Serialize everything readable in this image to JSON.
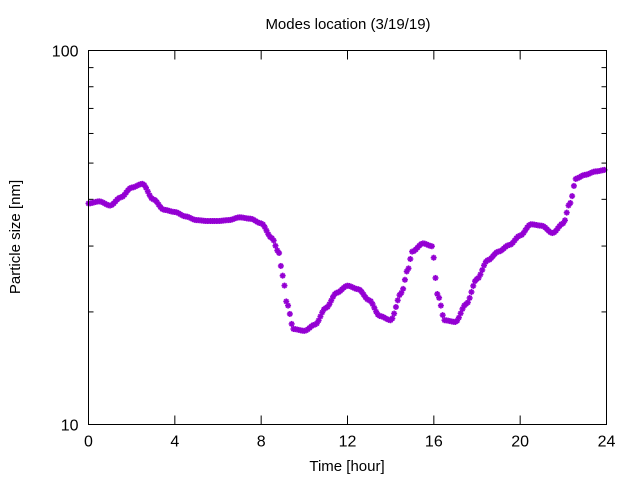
{
  "chart_data": {
    "type": "scatter",
    "title": "Modes location (3/19/19)",
    "xlabel": "Time [hour]",
    "ylabel": "Particle size [nm]",
    "xlim": [
      0,
      24
    ],
    "ylim": [
      10,
      100
    ],
    "yscale": "log",
    "xticks": [
      0,
      4,
      8,
      12,
      16,
      20,
      24
    ],
    "yticks": [
      10,
      100
    ],
    "grid": false,
    "marker_color": "#9400d3",
    "marker": "asterisk",
    "series": [
      {
        "x": [
          0.0,
          0.5,
          1.0,
          1.5,
          2.0,
          2.5,
          3.0,
          3.5,
          4.0,
          4.5,
          5.0,
          5.5,
          6.0,
          6.5,
          7.0,
          7.5,
          8.0,
          8.5,
          8.8,
          9.0,
          9.2,
          9.5,
          10.0,
          10.5,
          11.0,
          11.5,
          12.0,
          12.5,
          13.0,
          13.5,
          14.0,
          14.5,
          14.8,
          15.0,
          15.5,
          15.9,
          16.2,
          16.5,
          17.0,
          17.5,
          18.0,
          18.5,
          19.0,
          19.5,
          20.0,
          20.5,
          21.0,
          21.5,
          22.0,
          22.3,
          22.6,
          23.0,
          23.5,
          24.0
        ],
        "y": [
          39,
          39.5,
          38.5,
          40.5,
          43,
          44,
          40,
          37.5,
          37,
          36,
          35.2,
          35,
          35,
          35.2,
          35.8,
          35.5,
          34.5,
          31.5,
          29,
          25,
          21,
          18,
          17.8,
          18.5,
          20.5,
          22.5,
          23.5,
          23,
          21.5,
          19.5,
          19,
          22.5,
          26,
          29,
          30.5,
          30,
          22,
          19,
          18.8,
          21,
          24.5,
          27.5,
          29,
          30.2,
          32,
          34.3,
          34,
          32.5,
          34.5,
          39,
          45.5,
          46.5,
          47.5,
          48
        ]
      }
    ]
  }
}
